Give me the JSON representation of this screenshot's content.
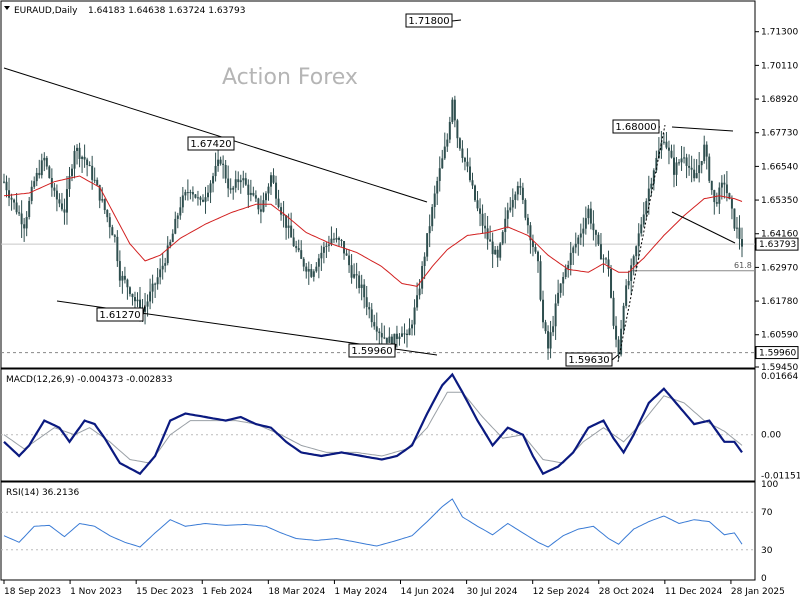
{
  "header": {
    "symbol_text": "EURAUD,Daily",
    "ohlc_text": "1.64183 1.64638 1.63724 1.63793"
  },
  "watermark": "Action Forex",
  "colors": {
    "candle": "#2f4f4f",
    "ma": "#d22020",
    "macd": "#0b1a80",
    "signal": "#9aa0a6",
    "rsi": "#3a7bd5",
    "trendline": "#000000",
    "hline": "#888888"
  },
  "chart_data": [
    {
      "name_key": "price",
      "type": "candlestick",
      "title": "EURAUD,Daily",
      "x_labels": [
        "18 Sep 2023",
        "1 Nov 2023",
        "15 Dec 2023",
        "1 Feb 2024",
        "18 Mar 2024",
        "1 May 2024",
        "14 Jun 2024",
        "30 Jul 2024",
        "12 Sep 2024",
        "28 Oct 2024",
        "11 Dec 2024",
        "28 Jan 2025"
      ],
      "y_ticks": [
        "1.71300",
        "1.70110",
        "1.68920",
        "1.67730",
        "1.66540",
        "1.65350",
        "1.64160",
        "1.62970",
        "1.61780",
        "1.60590",
        "1.59450"
      ],
      "ylim": [
        1.5945,
        1.7235
      ],
      "current_price_label": "1.63793",
      "support_label": "1.59960",
      "fib_label": "61.8",
      "annotations": [
        "1.71800",
        "1.67420",
        "1.68000",
        "1.61270",
        "1.59960",
        "1.59630"
      ],
      "ma_period": "55",
      "close_path": [
        [
          0,
          1.66
        ],
        [
          4,
          1.652
        ],
        [
          8,
          1.645
        ],
        [
          12,
          1.66
        ],
        [
          16,
          1.668
        ],
        [
          20,
          1.655
        ],
        [
          24,
          1.65
        ],
        [
          28,
          1.672
        ],
        [
          32,
          1.668
        ],
        [
          36,
          1.66
        ],
        [
          40,
          1.65
        ],
        [
          44,
          1.64
        ],
        [
          46,
          1.627
        ],
        [
          50,
          1.622
        ],
        [
          52,
          1.618
        ],
        [
          55,
          1.614
        ],
        [
          58,
          1.62
        ],
        [
          62,
          1.628
        ],
        [
          66,
          1.638
        ],
        [
          70,
          1.652
        ],
        [
          74,
          1.658
        ],
        [
          78,
          1.652
        ],
        [
          82,
          1.66
        ],
        [
          86,
          1.668
        ],
        [
          90,
          1.656
        ],
        [
          94,
          1.662
        ],
        [
          98,
          1.655
        ],
        [
          102,
          1.65
        ],
        [
          106,
          1.662
        ],
        [
          110,
          1.65
        ],
        [
          114,
          1.64
        ],
        [
          118,
          1.632
        ],
        [
          122,
          1.628
        ],
        [
          126,
          1.635
        ],
        [
          130,
          1.64
        ],
        [
          134,
          1.638
        ],
        [
          138,
          1.628
        ],
        [
          142,
          1.622
        ],
        [
          146,
          1.612
        ],
        [
          150,
          1.606
        ],
        [
          154,
          1.603
        ],
        [
          158,
          1.608
        ],
        [
          160,
          1.604
        ],
        [
          164,
          1.618
        ],
        [
          168,
          1.64
        ],
        [
          172,
          1.66
        ],
        [
          176,
          1.675
        ],
        [
          178,
          1.69
        ],
        [
          180,
          1.676
        ],
        [
          184,
          1.664
        ],
        [
          188,
          1.65
        ],
        [
          192,
          1.64
        ],
        [
          196,
          1.632
        ],
        [
          200,
          1.65
        ],
        [
          204,
          1.66
        ],
        [
          208,
          1.645
        ],
        [
          212,
          1.63
        ],
        [
          214,
          1.61
        ],
        [
          216,
          1.601
        ],
        [
          220,
          1.62
        ],
        [
          224,
          1.632
        ],
        [
          228,
          1.64
        ],
        [
          232,
          1.65
        ],
        [
          236,
          1.636
        ],
        [
          240,
          1.63
        ],
        [
          242,
          1.608
        ],
        [
          244,
          1.6
        ],
        [
          246,
          1.618
        ],
        [
          250,
          1.632
        ],
        [
          254,
          1.65
        ],
        [
          258,
          1.665
        ],
        [
          262,
          1.676
        ],
        [
          266,
          1.664
        ],
        [
          270,
          1.67
        ],
        [
          274,
          1.66
        ],
        [
          278,
          1.672
        ],
        [
          282,
          1.652
        ],
        [
          286,
          1.66
        ],
        [
          290,
          1.645
        ],
        [
          293,
          1.638
        ]
      ],
      "ma_path": [
        [
          0,
          1.655
        ],
        [
          10,
          1.656
        ],
        [
          20,
          1.66
        ],
        [
          30,
          1.662
        ],
        [
          38,
          1.658
        ],
        [
          44,
          1.648
        ],
        [
          50,
          1.638
        ],
        [
          56,
          1.632
        ],
        [
          62,
          1.634
        ],
        [
          70,
          1.64
        ],
        [
          80,
          1.645
        ],
        [
          90,
          1.649
        ],
        [
          100,
          1.652
        ],
        [
          106,
          1.652
        ],
        [
          112,
          1.648
        ],
        [
          120,
          1.642
        ],
        [
          130,
          1.638
        ],
        [
          140,
          1.635
        ],
        [
          150,
          1.63
        ],
        [
          158,
          1.624
        ],
        [
          164,
          1.623
        ],
        [
          170,
          1.63
        ],
        [
          176,
          1.636
        ],
        [
          184,
          1.641
        ],
        [
          192,
          1.642
        ],
        [
          200,
          1.644
        ],
        [
          208,
          1.641
        ],
        [
          216,
          1.634
        ],
        [
          224,
          1.629
        ],
        [
          232,
          1.628
        ],
        [
          238,
          1.631
        ],
        [
          244,
          1.628
        ],
        [
          248,
          1.628
        ],
        [
          254,
          1.633
        ],
        [
          262,
          1.641
        ],
        [
          270,
          1.648
        ],
        [
          278,
          1.654
        ],
        [
          284,
          1.655
        ],
        [
          290,
          1.654
        ],
        [
          293,
          1.653
        ]
      ]
    },
    {
      "name_key": "macd",
      "type": "line",
      "title": "MACD(12,26,9) -0.004373 -0.002833",
      "y_ticks": [
        "0.01664",
        "0.00",
        "-0.01151"
      ],
      "ylim": [
        -0.0125,
        0.018
      ],
      "series": [
        {
          "name": "MACD",
          "values_path": [
            [
              0,
              -0.002
            ],
            [
              6,
              -0.006
            ],
            [
              10,
              -0.003
            ],
            [
              16,
              0.004
            ],
            [
              22,
              0.002
            ],
            [
              26,
              -0.002
            ],
            [
              32,
              0.004
            ],
            [
              36,
              0.003
            ],
            [
              40,
              -0.001
            ],
            [
              46,
              -0.008
            ],
            [
              54,
              -0.011
            ],
            [
              60,
              -0.006
            ],
            [
              66,
              0.004
            ],
            [
              72,
              0.006
            ],
            [
              80,
              0.005
            ],
            [
              88,
              0.004
            ],
            [
              94,
              0.005
            ],
            [
              100,
              0.003
            ],
            [
              106,
              0.002
            ],
            [
              112,
              -0.002
            ],
            [
              118,
              -0.005
            ],
            [
              126,
              -0.006
            ],
            [
              134,
              -0.005
            ],
            [
              142,
              -0.006
            ],
            [
              150,
              -0.007
            ],
            [
              156,
              -0.006
            ],
            [
              162,
              -0.003
            ],
            [
              168,
              0.006
            ],
            [
              174,
              0.014
            ],
            [
              178,
              0.017
            ],
            [
              182,
              0.012
            ],
            [
              188,
              0.004
            ],
            [
              194,
              -0.003
            ],
            [
              200,
              0.002
            ],
            [
              206,
              0.0
            ],
            [
              210,
              -0.006
            ],
            [
              214,
              -0.011
            ],
            [
              220,
              -0.009
            ],
            [
              226,
              -0.005
            ],
            [
              232,
              0.002
            ],
            [
              238,
              0.004
            ],
            [
              242,
              -0.001
            ],
            [
              246,
              -0.005
            ],
            [
              250,
              0.0
            ],
            [
              256,
              0.009
            ],
            [
              262,
              0.013
            ],
            [
              268,
              0.008
            ],
            [
              274,
              0.003
            ],
            [
              280,
              0.004
            ],
            [
              286,
              -0.002
            ],
            [
              290,
              -0.002
            ],
            [
              293,
              -0.005
            ]
          ]
        },
        {
          "name": "Signal",
          "values_path": [
            [
              0,
              0.0
            ],
            [
              8,
              -0.004
            ],
            [
              14,
              -0.001
            ],
            [
              20,
              0.002
            ],
            [
              28,
              0.0
            ],
            [
              34,
              0.002
            ],
            [
              42,
              -0.002
            ],
            [
              50,
              -0.007
            ],
            [
              58,
              -0.008
            ],
            [
              66,
              0.0
            ],
            [
              74,
              0.004
            ],
            [
              84,
              0.004
            ],
            [
              92,
              0.004
            ],
            [
              100,
              0.003
            ],
            [
              110,
              0.0
            ],
            [
              118,
              -0.003
            ],
            [
              128,
              -0.005
            ],
            [
              140,
              -0.005
            ],
            [
              150,
              -0.006
            ],
            [
              160,
              -0.004
            ],
            [
              168,
              0.002
            ],
            [
              176,
              0.012
            ],
            [
              182,
              0.012
            ],
            [
              190,
              0.005
            ],
            [
              198,
              -0.001
            ],
            [
              206,
              0.0
            ],
            [
              214,
              -0.007
            ],
            [
              222,
              -0.008
            ],
            [
              230,
              -0.002
            ],
            [
              238,
              0.002
            ],
            [
              246,
              -0.002
            ],
            [
              254,
              0.004
            ],
            [
              262,
              0.011
            ],
            [
              270,
              0.009
            ],
            [
              278,
              0.004
            ],
            [
              286,
              0.001
            ],
            [
              293,
              -0.003
            ]
          ]
        }
      ]
    },
    {
      "name_key": "rsi",
      "type": "line",
      "title": "RSI(14) 36.2136",
      "y_ticks": [
        "100",
        "70",
        "30",
        "0"
      ],
      "ylim": [
        0,
        100
      ],
      "series": [
        {
          "name": "RSI",
          "values_path": [
            [
              0,
              45
            ],
            [
              6,
              38
            ],
            [
              12,
              55
            ],
            [
              18,
              56
            ],
            [
              24,
              44
            ],
            [
              30,
              58
            ],
            [
              36,
              55
            ],
            [
              42,
              45
            ],
            [
              48,
              38
            ],
            [
              54,
              33
            ],
            [
              60,
              48
            ],
            [
              66,
              62
            ],
            [
              72,
              55
            ],
            [
              80,
              58
            ],
            [
              88,
              56
            ],
            [
              96,
              57
            ],
            [
              104,
              55
            ],
            [
              110,
              48
            ],
            [
              116,
              42
            ],
            [
              124,
              40
            ],
            [
              132,
              42
            ],
            [
              140,
              38
            ],
            [
              148,
              34
            ],
            [
              156,
              40
            ],
            [
              162,
              45
            ],
            [
              168,
              60
            ],
            [
              174,
              76
            ],
            [
              178,
              84
            ],
            [
              182,
              65
            ],
            [
              188,
              55
            ],
            [
              194,
              46
            ],
            [
              200,
              58
            ],
            [
              206,
              48
            ],
            [
              212,
              38
            ],
            [
              216,
              33
            ],
            [
              222,
              45
            ],
            [
              228,
              52
            ],
            [
              234,
              55
            ],
            [
              240,
              42
            ],
            [
              244,
              36
            ],
            [
              250,
              52
            ],
            [
              256,
              60
            ],
            [
              262,
              66
            ],
            [
              268,
              58
            ],
            [
              274,
              62
            ],
            [
              280,
              60
            ],
            [
              286,
              46
            ],
            [
              290,
              48
            ],
            [
              293,
              36
            ]
          ]
        }
      ]
    }
  ]
}
